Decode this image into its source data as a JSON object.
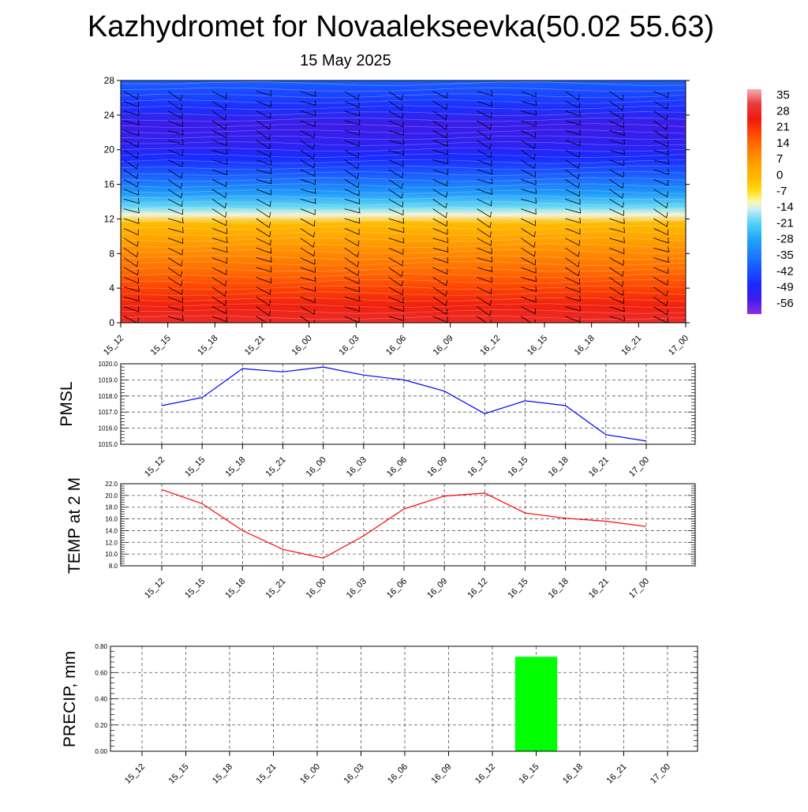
{
  "header": {
    "title": "Kazhydromet for Novaalekseevka(50.02 55.63)",
    "subtitle": "15 May 2025"
  },
  "colors": {
    "pmsl_line": "#0000ff",
    "temp_line": "#ff0000",
    "precip_bar": "#00ff00"
  },
  "chart_data": [
    {
      "id": "contour",
      "type": "heatmap",
      "title": "",
      "x_ticks": [
        "15_12",
        "15_15",
        "15_18",
        "15_21",
        "16_00",
        "16_03",
        "16_06",
        "16_09",
        "16_12",
        "16_15",
        "16_18",
        "16_21",
        "17_00"
      ],
      "y_ticks": [
        0,
        4,
        8,
        12,
        16,
        20,
        24,
        28
      ],
      "ylim": [
        0,
        28
      ],
      "colorbar_labels": [
        35,
        28,
        21,
        14,
        7,
        0,
        -7,
        -14,
        -21,
        -28,
        -35,
        -42,
        -49,
        -56
      ],
      "colorbar_range": [
        -63,
        42
      ],
      "value_profile": [
        [
          0,
          32
        ],
        [
          2,
          27
        ],
        [
          4,
          22
        ],
        [
          6,
          16
        ],
        [
          8,
          11
        ],
        [
          10,
          5
        ],
        [
          11.5,
          0
        ],
        [
          12.5,
          -12
        ],
        [
          13.5,
          -20
        ],
        [
          15,
          -30
        ],
        [
          17,
          -40
        ],
        [
          19,
          -49
        ],
        [
          21,
          -54
        ],
        [
          23,
          -56
        ],
        [
          25,
          -48
        ],
        [
          28,
          -40
        ]
      ],
      "wind_barbs": "present"
    },
    {
      "id": "pmsl",
      "type": "line",
      "ylabel": "PMSL",
      "x": [
        "15_12",
        "15_15",
        "15_18",
        "15_21",
        "16_00",
        "16_03",
        "16_06",
        "16_09",
        "16_12",
        "16_15",
        "16_18",
        "16_21",
        "17_00"
      ],
      "y_ticks": [
        "1015.0",
        "1016.0",
        "1017.0",
        "1018.0",
        "1019.0",
        "1020.0"
      ],
      "ylim": [
        1015,
        1020
      ],
      "values": [
        1017.4,
        1017.9,
        1019.7,
        1019.5,
        1019.8,
        1019.3,
        1019.0,
        1018.3,
        1016.9,
        1017.7,
        1017.4,
        1015.6,
        1015.2
      ],
      "grid": true
    },
    {
      "id": "temp",
      "type": "line",
      "ylabel": "TEMP at 2 M",
      "x": [
        "15_12",
        "15_15",
        "15_18",
        "15_21",
        "16_00",
        "16_03",
        "16_06",
        "16_09",
        "16_12",
        "16_15",
        "16_18",
        "16_21",
        "17_00"
      ],
      "y_ticks": [
        "8.0",
        "10.0",
        "12.0",
        "14.0",
        "16.0",
        "18.0",
        "20.0",
        "22.0"
      ],
      "ylim": [
        8,
        22
      ],
      "values": [
        21.0,
        18.6,
        14.0,
        10.8,
        9.3,
        13.1,
        17.7,
        19.9,
        20.4,
        17.0,
        16.1,
        15.6,
        14.7
      ],
      "grid": true
    },
    {
      "id": "precip",
      "type": "bar",
      "ylabel": "PRECIP, mm",
      "categories": [
        "15_12",
        "15_15",
        "15_18",
        "15_21",
        "16_00",
        "16_03",
        "16_06",
        "16_09",
        "16_12",
        "16_15",
        "16_18",
        "16_21",
        "17_00"
      ],
      "y_ticks": [
        "0.00",
        "0.20",
        "0.40",
        "0.60",
        "0.80"
      ],
      "ylim": [
        0,
        0.8
      ],
      "values": [
        0,
        0,
        0,
        0,
        0,
        0,
        0,
        0,
        0,
        0.72,
        0,
        0,
        0
      ],
      "grid": true
    }
  ]
}
